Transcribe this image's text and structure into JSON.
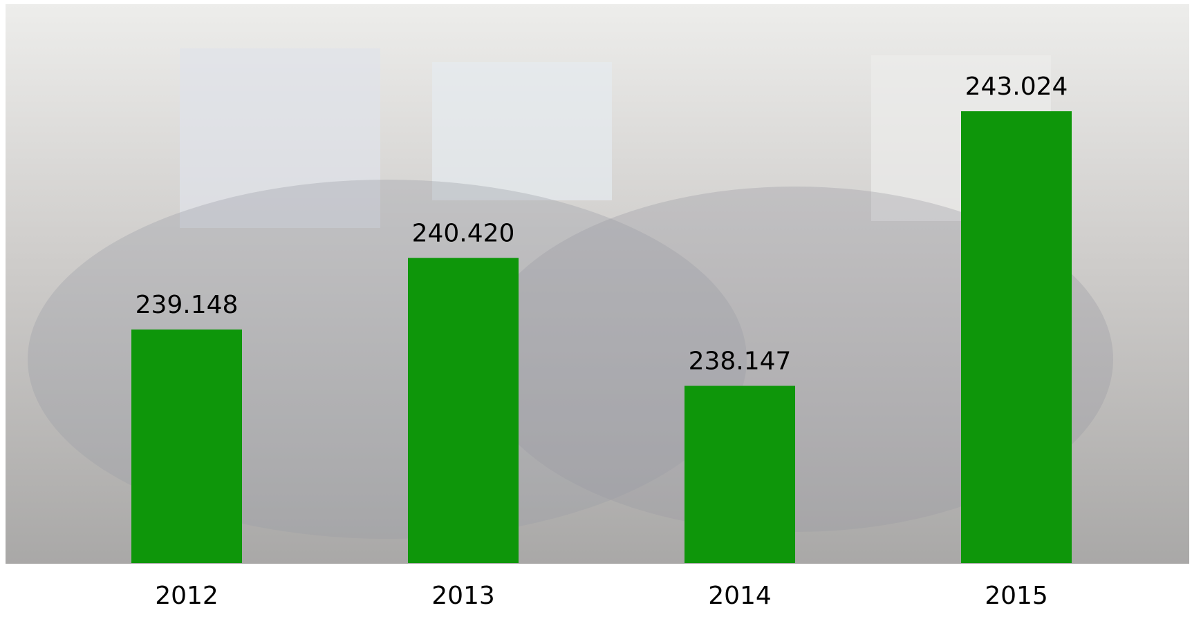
{
  "chart_data": {
    "type": "bar",
    "categories": [
      "2012",
      "2013",
      "2014",
      "2015"
    ],
    "values": [
      239.148,
      240.42,
      238.147,
      243.024
    ],
    "value_labels": [
      "239.148",
      "240.420",
      "238.147",
      "243.024"
    ],
    "color": "#0e960a",
    "ylim": [
      235,
      245
    ]
  }
}
